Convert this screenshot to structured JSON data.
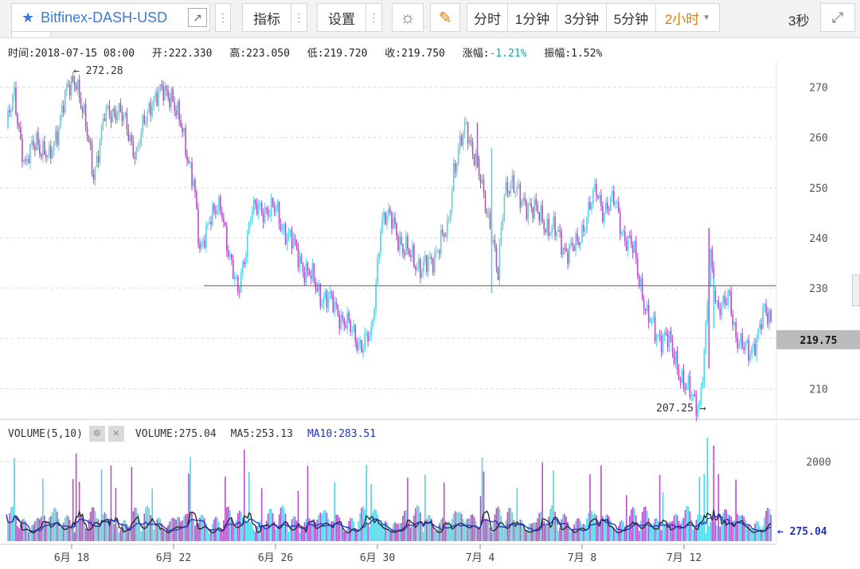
{
  "toolbar": {
    "symbol": "Bitfinex-DASH-USD",
    "indicators_label": "指标",
    "settings_label": "设置",
    "intervals": [
      "分时",
      "1分钟",
      "3分钟",
      "5分钟"
    ],
    "selected_interval": "2小时",
    "refresh": "3秒",
    "colors": {
      "star": "#3a7bd5",
      "active_interval": "#e07b00",
      "pencil": "#e07b00"
    }
  },
  "info": {
    "time": "时间:2018-07-15 08:00",
    "open": "开:222.330",
    "high": "高:223.050",
    "low": "低:219.720",
    "close": "收:219.750",
    "change_label": "涨幅:",
    "change_value": "-1.21%",
    "amplitude": "振幅:1.52%"
  },
  "volume_header": {
    "title": "VOLUME(5,10)",
    "volume": "VOLUME:275.04",
    "ma5": "MA5:253.13",
    "ma10": "MA10:283.51"
  },
  "chart_data": {
    "type": "candlestick",
    "interval": "2小时",
    "x_tick_labels": [
      "6月 18",
      "6月 22",
      "6月 26",
      "6月 30",
      "7月 4",
      "7月 8",
      "7月 12"
    ],
    "y_tick_labels": [
      270,
      260,
      250,
      240,
      230,
      210
    ],
    "y_range": [
      205,
      275
    ],
    "current_price_label": "219.75",
    "max_annotation": "← 272.28",
    "min_annotation": "207.25 →",
    "horizontal_line": 230.5,
    "volume_tick_label": "2000",
    "volume_range": [
      0,
      2500
    ],
    "volume_last_label": "← 275.04",
    "colors": {
      "up": "#4fd4e4",
      "down": "#b34fc7",
      "ma5": "#222222",
      "ma10": "#2233bb",
      "grid": "#dddddd",
      "price_box": "#bbbbbb"
    },
    "price_path": [
      [
        0,
        262
      ],
      [
        5,
        268
      ],
      [
        12,
        254
      ],
      [
        19,
        260
      ],
      [
        27,
        255
      ],
      [
        36,
        267
      ],
      [
        44,
        272.3
      ],
      [
        55,
        253
      ],
      [
        62,
        264
      ],
      [
        70,
        266
      ],
      [
        82,
        257
      ],
      [
        92,
        268
      ],
      [
        104,
        269
      ],
      [
        118,
        252
      ],
      [
        122,
        236
      ],
      [
        128,
        245
      ],
      [
        136,
        245
      ],
      [
        146,
        228
      ],
      [
        154,
        245
      ],
      [
        164,
        246
      ],
      [
        170,
        245
      ],
      [
        180,
        239
      ],
      [
        188,
        234
      ],
      [
        198,
        229
      ],
      [
        208,
        226
      ],
      [
        218,
        221
      ],
      [
        224,
        219
      ],
      [
        230,
        220
      ],
      [
        236,
        243
      ],
      [
        244,
        244
      ],
      [
        250,
        237
      ],
      [
        256,
        237
      ],
      [
        262,
        233
      ],
      [
        270,
        237
      ],
      [
        278,
        241
      ],
      [
        282,
        254
      ],
      [
        290,
        262
      ],
      [
        296,
        256
      ],
      [
        300,
        249
      ],
      [
        306,
        242
      ],
      [
        310,
        232
      ],
      [
        314,
        249
      ],
      [
        318,
        252
      ],
      [
        324,
        247
      ],
      [
        330,
        247
      ],
      [
        336,
        244
      ],
      [
        344,
        242
      ],
      [
        352,
        238
      ],
      [
        360,
        238
      ],
      [
        366,
        245
      ],
      [
        372,
        249
      ],
      [
        376,
        246
      ],
      [
        384,
        247
      ],
      [
        390,
        240
      ],
      [
        396,
        237
      ],
      [
        400,
        231
      ],
      [
        404,
        224
      ],
      [
        410,
        221
      ],
      [
        416,
        220
      ],
      [
        422,
        216
      ],
      [
        428,
        210
      ],
      [
        434,
        208
      ],
      [
        437,
        207.25
      ],
      [
        440,
        216
      ],
      [
        444,
        236
      ],
      [
        448,
        227
      ],
      [
        452,
        226
      ],
      [
        456,
        228
      ],
      [
        460,
        221
      ],
      [
        464,
        218
      ],
      [
        468,
        217
      ],
      [
        474,
        221
      ],
      [
        478,
        225
      ],
      [
        482,
        224
      ]
    ]
  }
}
